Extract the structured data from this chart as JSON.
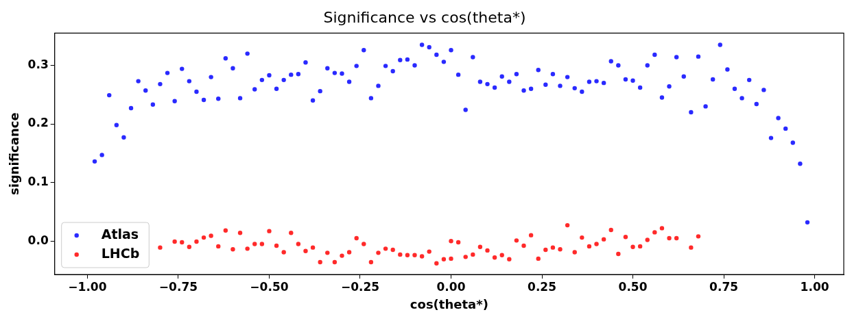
{
  "chart_data": {
    "type": "scatter",
    "title": "Significance vs cos(theta*)",
    "xlabel": "cos(theta*)",
    "ylabel": "significance",
    "xlim": [
      -1.09,
      1.08
    ],
    "ylim": [
      -0.057,
      0.355
    ],
    "xticks": [
      {
        "value": -1,
        "label": "−1.00"
      },
      {
        "value": -0.75,
        "label": "−0.75"
      },
      {
        "value": -0.5,
        "label": "−0.50"
      },
      {
        "value": -0.25,
        "label": "−0.25"
      },
      {
        "value": 0,
        "label": "0.00"
      },
      {
        "value": 0.25,
        "label": "0.25"
      },
      {
        "value": 0.5,
        "label": "0.50"
      },
      {
        "value": 0.75,
        "label": "0.75"
      },
      {
        "value": 1,
        "label": "1.00"
      }
    ],
    "yticks": [
      {
        "value": 0,
        "label": "0.0"
      },
      {
        "value": 0.1,
        "label": "0.1"
      },
      {
        "value": 0.2,
        "label": "0.2"
      },
      {
        "value": 0.3,
        "label": "0.3"
      }
    ],
    "grid": false,
    "legend": "bottom left",
    "marker": "circle",
    "series": [
      {
        "name": "Atlas",
        "color": "#2a2aff",
        "x": [
          -0.98,
          -0.96,
          -0.94,
          -0.92,
          -0.9,
          -0.88,
          -0.86,
          -0.84,
          -0.82,
          -0.8,
          -0.78,
          -0.76,
          -0.74,
          -0.72,
          -0.7,
          -0.68,
          -0.66,
          -0.64,
          -0.62,
          -0.6,
          -0.58,
          -0.56,
          -0.54,
          -0.52,
          -0.5,
          -0.48,
          -0.46,
          -0.44,
          -0.42,
          -0.4,
          -0.38,
          -0.36,
          -0.34,
          -0.32,
          -0.3,
          -0.28,
          -0.26,
          -0.24,
          -0.22,
          -0.2,
          -0.18,
          -0.16,
          -0.14,
          -0.12,
          -0.1,
          -0.08,
          -0.06,
          -0.04,
          -0.02,
          0,
          0.02,
          0.04,
          0.06,
          0.08,
          0.1,
          0.12,
          0.14,
          0.16,
          0.18,
          0.2,
          0.22,
          0.24,
          0.26,
          0.28,
          0.3,
          0.32,
          0.34,
          0.36,
          0.38,
          0.4,
          0.42,
          0.44,
          0.46,
          0.48,
          0.5,
          0.52,
          0.54,
          0.56,
          0.58,
          0.6,
          0.62,
          0.64,
          0.66,
          0.68,
          0.7,
          0.72,
          0.74,
          0.76,
          0.78,
          0.8,
          0.82,
          0.84,
          0.86,
          0.88,
          0.9,
          0.92,
          0.94,
          0.96,
          0.98
        ],
        "values": [
          0.136,
          0.147,
          0.249,
          0.198,
          0.177,
          0.227,
          0.273,
          0.257,
          0.233,
          0.268,
          0.287,
          0.239,
          0.294,
          0.273,
          0.255,
          0.241,
          0.28,
          0.243,
          0.312,
          0.295,
          0.244,
          0.32,
          0.259,
          0.275,
          0.283,
          0.26,
          0.275,
          0.284,
          0.285,
          0.305,
          0.24,
          0.256,
          0.295,
          0.287,
          0.286,
          0.272,
          0.299,
          0.326,
          0.244,
          0.265,
          0.299,
          0.29,
          0.309,
          0.31,
          0.3,
          0.335,
          0.331,
          0.318,
          0.306,
          0.326,
          0.284,
          0.224,
          0.314,
          0.272,
          0.268,
          0.262,
          0.281,
          0.272,
          0.285,
          0.257,
          0.26,
          0.292,
          0.267,
          0.285,
          0.265,
          0.28,
          0.261,
          0.255,
          0.272,
          0.273,
          0.27,
          0.307,
          0.3,
          0.276,
          0.274,
          0.262,
          0.3,
          0.318,
          0.245,
          0.264,
          0.314,
          0.281,
          0.22,
          0.315,
          0.23,
          0.276,
          0.335,
          0.293,
          0.26,
          0.244,
          0.275,
          0.234,
          0.258,
          0.176,
          0.21,
          0.192,
          0.168,
          0.132,
          0.032
        ]
      },
      {
        "name": "LHCb",
        "color": "#ff2a2a",
        "x": [
          -0.8,
          -0.78,
          -0.76,
          -0.74,
          -0.72,
          -0.7,
          -0.68,
          -0.66,
          -0.64,
          -0.62,
          -0.6,
          -0.58,
          -0.56,
          -0.54,
          -0.52,
          -0.5,
          -0.48,
          -0.46,
          -0.44,
          -0.42,
          -0.4,
          -0.38,
          -0.36,
          -0.34,
          -0.32,
          -0.3,
          -0.28,
          -0.26,
          -0.24,
          -0.22,
          -0.2,
          -0.18,
          -0.16,
          -0.14,
          -0.12,
          -0.1,
          -0.08,
          -0.06,
          -0.04,
          -0.02,
          0,
          0,
          0.02,
          0.04,
          0.06,
          0.08,
          0.1,
          0.12,
          0.14,
          0.16,
          0.18,
          0.2,
          0.22,
          0.24,
          0.26,
          0.28,
          0.3,
          0.32,
          0.34,
          0.36,
          0.38,
          0.4,
          0.42,
          0.44,
          0.46,
          0.48,
          0.5,
          0.52,
          0.54,
          0.56,
          0.58,
          0.6,
          0.62,
          0.64,
          0.66,
          0.68
        ],
        "values": [
          -0.011,
          null,
          -0.001,
          -0.002,
          -0.01,
          -0.001,
          0.006,
          0.009,
          -0.009,
          0.018,
          -0.014,
          0.014,
          -0.013,
          -0.005,
          -0.005,
          0.017,
          -0.008,
          -0.019,
          0.014,
          -0.005,
          -0.017,
          -0.011,
          -0.036,
          -0.02,
          -0.036,
          -0.025,
          -0.019,
          0.005,
          -0.005,
          -0.036,
          -0.02,
          -0.013,
          -0.015,
          -0.023,
          -0.024,
          -0.024,
          -0.026,
          -0.018,
          -0.038,
          -0.031,
          0,
          -0.03,
          -0.002,
          -0.027,
          -0.023,
          -0.01,
          -0.016,
          -0.028,
          -0.024,
          -0.031,
          0.001,
          -0.008,
          0.01,
          -0.03,
          -0.015,
          -0.011,
          -0.014,
          0.027,
          -0.019,
          0.006,
          -0.009,
          -0.005,
          0.003,
          0.019,
          -0.022,
          0.007,
          -0.01,
          -0.009,
          0.002,
          0.015,
          0.022,
          0.005,
          0.005,
          null,
          -0.011,
          0.008
        ]
      }
    ]
  }
}
